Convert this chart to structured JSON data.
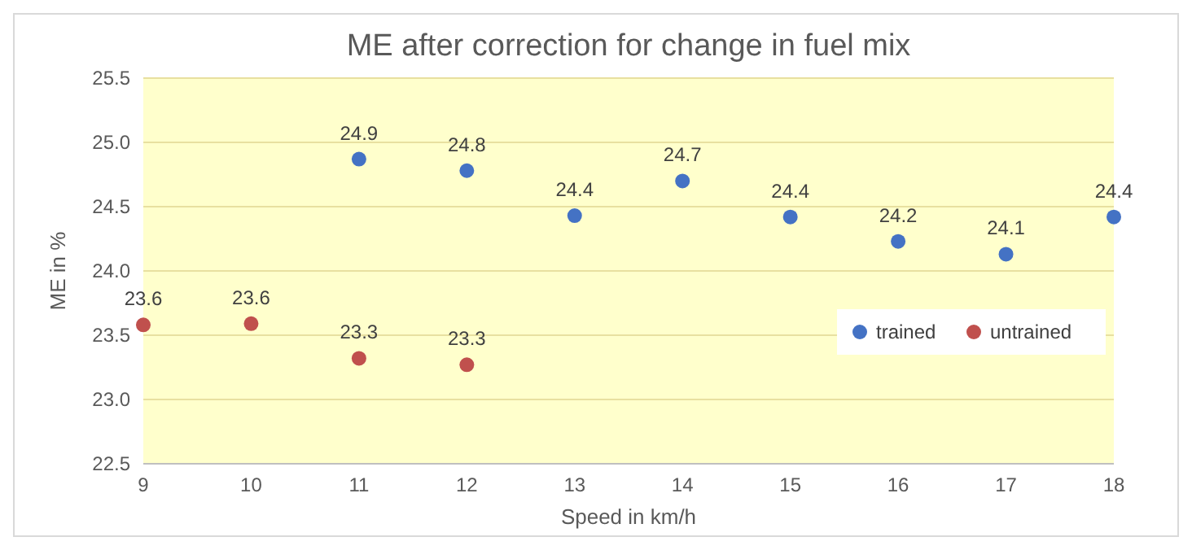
{
  "chart_data": {
    "type": "scatter",
    "title": "ME after correction for change in fuel mix",
    "xlabel": "Speed in km/h",
    "ylabel": "ME in %",
    "xlim": [
      9,
      18
    ],
    "xticks": [
      9,
      10,
      11,
      12,
      13,
      14,
      15,
      16,
      17,
      18
    ],
    "ylim": [
      22.5,
      25.5
    ],
    "yticks": [
      22.5,
      {
        "value": 23,
        "label": "23.0"
      },
      23.5,
      {
        "value": 24,
        "label": "24.0"
      },
      24.5,
      {
        "value": 25,
        "label": "25.0"
      },
      25.5
    ],
    "grid": "y",
    "legend": "right",
    "marker": "circle",
    "series": [
      {
        "name": "trained",
        "color": "#4472c4",
        "x": [
          11,
          12,
          13,
          14,
          15,
          16,
          17,
          18
        ],
        "values": [
          24.87,
          24.78,
          24.43,
          24.7,
          24.42,
          24.23,
          24.13,
          24.42
        ],
        "value_labels": [
          "24.9",
          "24.8",
          "24.4",
          "24.7",
          "24.4",
          "24.2",
          "24.1",
          "24.4"
        ]
      },
      {
        "name": "untrained",
        "color": "#c0504d",
        "x": [
          9,
          10,
          11,
          12
        ],
        "values": [
          23.58,
          23.59,
          23.32,
          23.27
        ],
        "value_labels": [
          "23.6",
          "23.6",
          "23.3",
          "23.3"
        ]
      }
    ]
  }
}
